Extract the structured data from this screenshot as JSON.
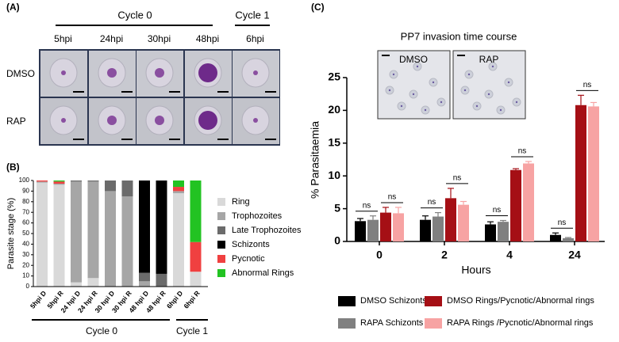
{
  "figure": {
    "panel_labels": [
      "(A)",
      "(B)",
      "(C)"
    ]
  },
  "panel_a": {
    "cycles": [
      "Cycle 0",
      "Cycle 1"
    ],
    "timepoints": [
      "5hpi",
      "24hpi",
      "30hpi",
      "48hpi",
      "6hpi"
    ],
    "conditions": [
      "DMSO",
      "RAP"
    ]
  },
  "panel_b": {
    "cycles": [
      "Cycle 0",
      "Cycle 1"
    ]
  },
  "panel_c": {
    "inset_labels": [
      "DMSO",
      "RAP"
    ]
  },
  "chart_data": [
    {
      "type": "stacked_bar",
      "y_label": "Parasite stage (%)",
      "categories": [
        "5hpi D",
        "5hpi R",
        "24 hpi D",
        "24 hpi R",
        "30 hpi D",
        "30 hpi R",
        "48 hpi D",
        "48 hpi R",
        "6hpi D",
        "6hpi R"
      ],
      "series": [
        {
          "name": "Ring",
          "color": "#d9d9d9",
          "values": [
            98,
            96,
            4,
            8,
            0,
            0,
            0,
            0,
            88,
            14
          ]
        },
        {
          "name": "Trophozoites",
          "color": "#a6a6a6",
          "values": [
            1,
            1,
            95,
            91,
            90,
            85,
            5,
            0,
            2,
            0
          ]
        },
        {
          "name": "Late Trophozoites",
          "color": "#6b6b6b",
          "values": [
            0,
            0,
            1,
            1,
            10,
            15,
            8,
            12,
            0,
            0
          ]
        },
        {
          "name": "Schizonts",
          "color": "#000000",
          "values": [
            0,
            0,
            0,
            0,
            0,
            0,
            87,
            88,
            0,
            0
          ]
        },
        {
          "name": "Pycnotic",
          "color": "#f04040",
          "values": [
            1,
            2,
            0,
            0,
            0,
            0,
            0,
            0,
            4,
            28
          ]
        },
        {
          "name": "Abnormal Rings",
          "color": "#22c322",
          "values": [
            0,
            1,
            0,
            0,
            0,
            0,
            0,
            0,
            6,
            58
          ]
        }
      ],
      "ylim": [
        0,
        100
      ],
      "yticks": [
        0,
        10,
        20,
        30,
        40,
        50,
        60,
        70,
        80,
        90,
        100
      ]
    },
    {
      "type": "bar",
      "title": "PP7 invasion time course",
      "x_label": "Hours",
      "y_label": "% Parasitaemia",
      "categories": [
        "0",
        "2",
        "4",
        "24"
      ],
      "series": [
        {
          "name": "DMSO Schizonts",
          "color": "#000000",
          "values": [
            3.1,
            3.3,
            2.6,
            1.0
          ],
          "errors": [
            0.4,
            0.6,
            0.4,
            0.3
          ]
        },
        {
          "name": "RAPA Schizonts",
          "color": "#808080",
          "values": [
            3.3,
            3.8,
            3.0,
            0.5
          ],
          "errors": [
            0.6,
            0.6,
            0.2,
            0.1
          ]
        },
        {
          "name": "DMSO Rings/Pycnotic/Abnormal rings",
          "color": "#a50f15",
          "values": [
            4.4,
            6.6,
            10.9,
            20.8
          ],
          "errors": [
            0.8,
            1.5,
            0.2,
            1.5
          ]
        },
        {
          "name": "RAPA Rings /Pycnotic/Abnormal rings",
          "color": "#f7a3a3",
          "values": [
            4.3,
            5.6,
            11.9,
            20.6
          ],
          "errors": [
            0.9,
            0.5,
            0.3,
            0.6
          ]
        }
      ],
      "significance": [
        "ns",
        "ns",
        "ns",
        "ns",
        "ns",
        "ns",
        "ns",
        "ns"
      ],
      "ylim": [
        0,
        25
      ],
      "yticks": [
        0,
        5,
        10,
        15,
        20,
        25
      ]
    }
  ]
}
